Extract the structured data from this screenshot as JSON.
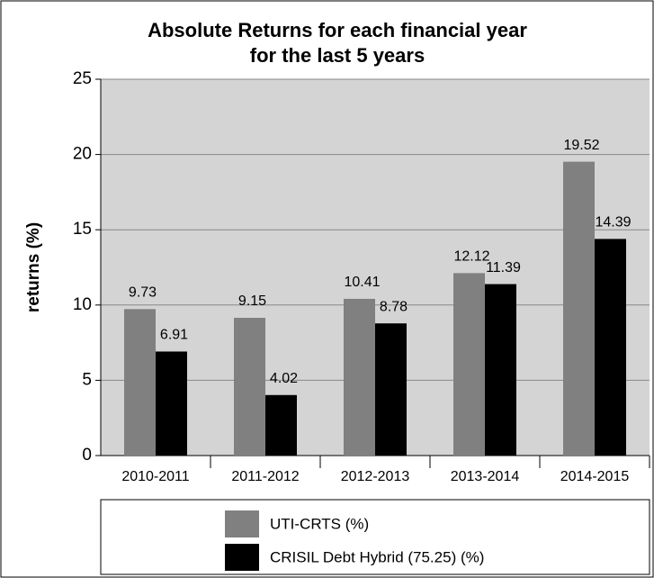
{
  "chart_data": {
    "type": "bar",
    "title": [
      "Absolute Returns for each financial year",
      "for the last 5 years"
    ],
    "y_label": "returns (%)",
    "categories": [
      "2010-2011",
      "2011-2012",
      "2012-2013",
      "2013-2014",
      "2014-2015"
    ],
    "series": [
      {
        "name": "UTI-CRTS (%)",
        "color": "#808080",
        "values": [
          9.73,
          9.15,
          10.41,
          12.12,
          19.52
        ]
      },
      {
        "name": "CRISIL Debt Hybrid (75.25) (%)",
        "color": "#000000",
        "values": [
          6.91,
          4.02,
          8.78,
          11.39,
          14.39
        ]
      }
    ],
    "ylim": [
      0,
      25
    ],
    "yticks": [
      0,
      5,
      10,
      15,
      20,
      25
    ],
    "grid": true,
    "legend": "bottom"
  }
}
